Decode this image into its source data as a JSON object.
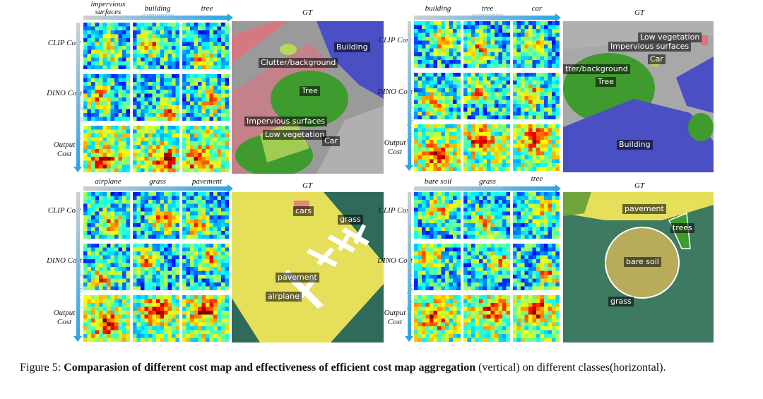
{
  "panels": [
    {
      "id": "top-left",
      "columns": [
        "impervious surfaces",
        "building",
        "tree"
      ],
      "categories_label": "categories",
      "rows": [
        "CLIP Cost",
        "DINO Cost",
        "Output Cost"
      ],
      "vertical_label": "Cost Aggregation",
      "gt_title": "GT",
      "gt_labels": [
        "Building",
        "Clutter/background",
        "Tree",
        "Impervious surfaces",
        "Low vegetation",
        "Car"
      ]
    },
    {
      "id": "top-right",
      "columns": [
        "building",
        "tree",
        "car"
      ],
      "categories_label": "categories",
      "rows": [
        "CLIP Cost",
        "DINO Cost",
        "Output Cost"
      ],
      "vertical_label": "Cost Aggregation",
      "gt_title": "GT",
      "gt_labels": [
        "Low vegetation",
        "Impervious surfaces",
        "Car",
        "tter/background",
        "Tree",
        "Building"
      ]
    },
    {
      "id": "bottom-left",
      "columns": [
        "airplane",
        "grass",
        "pavement"
      ],
      "categories_label": "categories",
      "rows": [
        "CLIP Cost",
        "DINO Cost",
        "Output Cost"
      ],
      "vertical_label": "Cost Aggregation",
      "gt_title": "GT",
      "gt_labels": [
        "cars",
        "grass",
        "pavement",
        "airplane"
      ]
    },
    {
      "id": "bottom-right",
      "columns": [
        "bare soil",
        "grass",
        "tree"
      ],
      "categories_label": "categories",
      "rows": [
        "CLIP Cost",
        "DINO Cost",
        "Output Cost"
      ],
      "vertical_label": "Cost Aggregation",
      "gt_title": "GT",
      "gt_labels": [
        "pavement",
        "trees",
        "bare soil",
        "grass"
      ]
    }
  ],
  "caption": {
    "prefix": "Figure 5: ",
    "bold": "Comparasion of different cost map and effectiveness of efficient cost map aggregation",
    "suffix": " (vertical) on different classes(horizontal)."
  },
  "colors": {
    "category_accent": "#8ab7d8",
    "gt_building": "#4a4fc4",
    "gt_tree": "#3f9b2e",
    "gt_lowveg": "#b8d85a",
    "gt_clutter": "#e0727e",
    "gt_pavement": "#e6df5a",
    "gt_grass": "#2f6b5a"
  }
}
